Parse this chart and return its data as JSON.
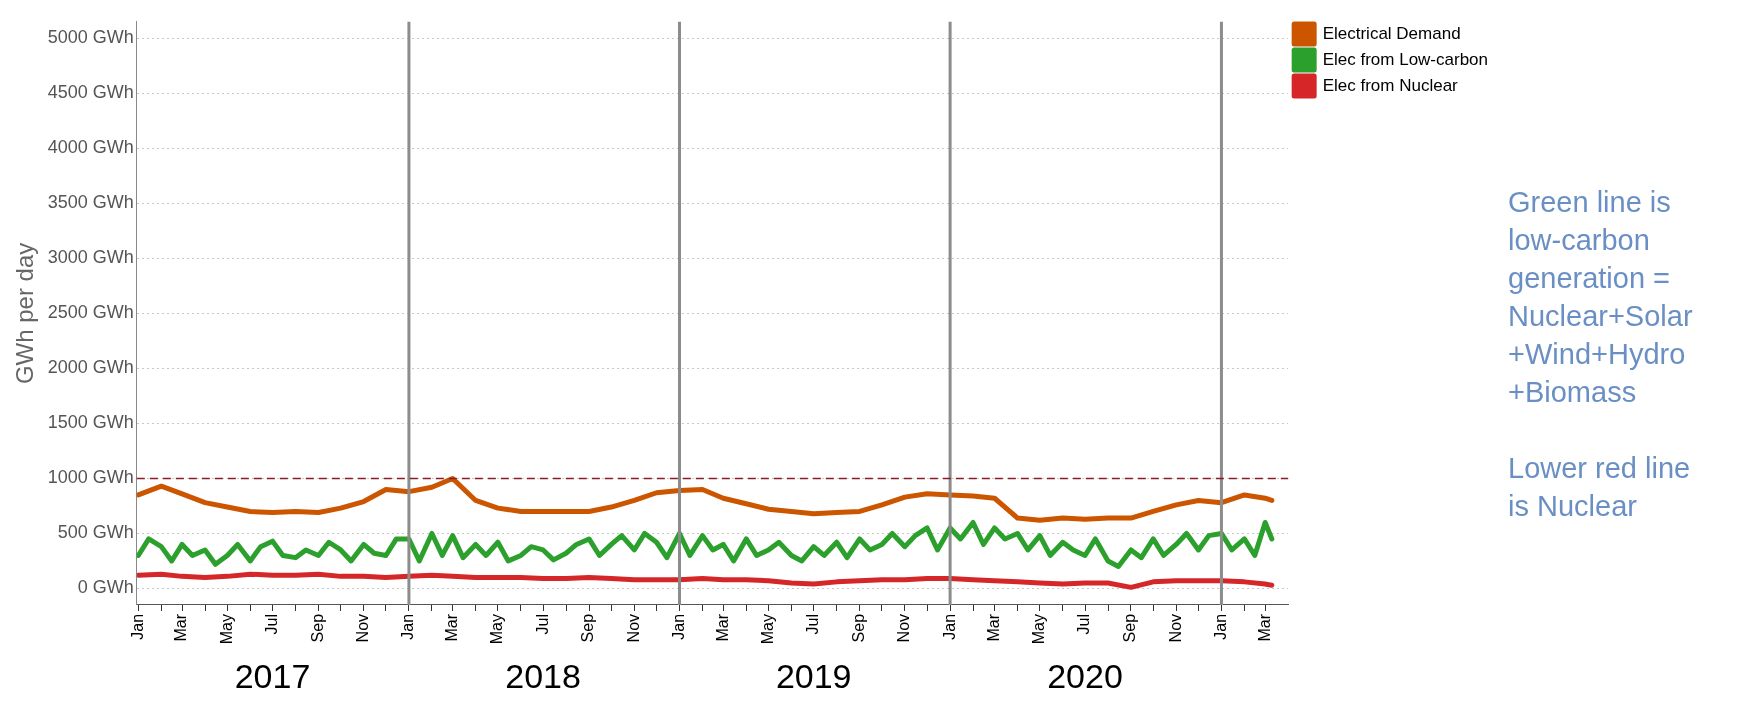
{
  "chart_data": {
    "type": "line",
    "ylabel": "GWh per day",
    "xlim": [
      "2016-12-30",
      "2021-04-01"
    ],
    "xticks": [
      {
        "value": "2017-01",
        "label": "Jan"
      },
      {
        "value": "2017-02",
        "label": null
      },
      {
        "value": "2017-03",
        "label": "Mar"
      },
      {
        "value": "2017-04",
        "label": null
      },
      {
        "value": "2017-05",
        "label": "May"
      },
      {
        "value": "2017-06",
        "label": null
      },
      {
        "value": "2017-07",
        "label": "Jul"
      },
      {
        "value": "2017-08",
        "label": null
      },
      {
        "value": "2017-09",
        "label": "Sep"
      },
      {
        "value": "2017-10",
        "label": null
      },
      {
        "value": "2017-11",
        "label": "Nov"
      },
      {
        "value": "2017-12",
        "label": null
      },
      {
        "value": "2018-01",
        "label": "Jan"
      },
      {
        "value": "2018-02",
        "label": null
      },
      {
        "value": "2018-03",
        "label": "Mar"
      },
      {
        "value": "2018-04",
        "label": null
      },
      {
        "value": "2018-05",
        "label": "May"
      },
      {
        "value": "2018-06",
        "label": null
      },
      {
        "value": "2018-07",
        "label": "Jul"
      },
      {
        "value": "2018-08",
        "label": null
      },
      {
        "value": "2018-09",
        "label": "Sep"
      },
      {
        "value": "2018-10",
        "label": null
      },
      {
        "value": "2018-11",
        "label": "Nov"
      },
      {
        "value": "2018-12",
        "label": null
      },
      {
        "value": "2019-01",
        "label": "Jan"
      },
      {
        "value": "2019-02",
        "label": null
      },
      {
        "value": "2019-03",
        "label": "Mar"
      },
      {
        "value": "2019-04",
        "label": null
      },
      {
        "value": "2019-05",
        "label": "May"
      },
      {
        "value": "2019-06",
        "label": null
      },
      {
        "value": "2019-07",
        "label": "Jul"
      },
      {
        "value": "2019-08",
        "label": null
      },
      {
        "value": "2019-09",
        "label": "Sep"
      },
      {
        "value": "2019-10",
        "label": null
      },
      {
        "value": "2019-11",
        "label": "Nov"
      },
      {
        "value": "2019-12",
        "label": null
      },
      {
        "value": "2020-01",
        "label": "Jan"
      },
      {
        "value": "2020-02",
        "label": null
      },
      {
        "value": "2020-03",
        "label": "Mar"
      },
      {
        "value": "2020-04",
        "label": null
      },
      {
        "value": "2020-05",
        "label": "May"
      },
      {
        "value": "2020-06",
        "label": null
      },
      {
        "value": "2020-07",
        "label": "Jul"
      },
      {
        "value": "2020-08",
        "label": null
      },
      {
        "value": "2020-09",
        "label": "Sep"
      },
      {
        "value": "2020-10",
        "label": null
      },
      {
        "value": "2020-11",
        "label": "Nov"
      },
      {
        "value": "2020-12",
        "label": null
      },
      {
        "value": "2021-01",
        "label": "Jan"
      },
      {
        "value": "2021-02",
        "label": null
      },
      {
        "value": "2021-03",
        "label": "Mar"
      }
    ],
    "x2lim": [
      "2016-12-30",
      "2021-04-01"
    ],
    "x2ticks": [
      {
        "value": "2017-07-01",
        "label": "2017"
      },
      {
        "value": "2018-07-01",
        "label": "2018"
      },
      {
        "value": "2019-07-01",
        "label": "2019"
      },
      {
        "value": "2020-07-01",
        "label": "2020"
      }
    ],
    "ylim": [
      -150,
      5150
    ],
    "yticks": [
      {
        "value": 0,
        "label": "0 GWh"
      },
      {
        "value": 500,
        "label": "500 GWh"
      },
      {
        "value": 1000,
        "label": "1000 GWh"
      },
      {
        "value": 1500,
        "label": "1500 GWh"
      },
      {
        "value": 2000,
        "label": "2000 GWh"
      },
      {
        "value": 2500,
        "label": "2500 GWh"
      },
      {
        "value": 3000,
        "label": "3000 GWh"
      },
      {
        "value": 3500,
        "label": "3500 GWh"
      },
      {
        "value": 4000,
        "label": "4000 GWh"
      },
      {
        "value": 4500,
        "label": "4500 GWh"
      },
      {
        "value": 5000,
        "label": "5000 GWh"
      }
    ],
    "grid": "y",
    "legend": "top right",
    "ref_lines": [
      {
        "axis": "x",
        "value": "2018-01-01",
        "color": "#8c8c8c"
      },
      {
        "axis": "x",
        "value": "2019-01-01",
        "color": "#8c8c8c"
      },
      {
        "axis": "x",
        "value": "2020-01-01",
        "color": "#8c8c8c"
      },
      {
        "axis": "x",
        "value": "2021-01-01",
        "color": "#8c8c8c"
      },
      {
        "axis": "y",
        "value": 1000,
        "color": "#8b1a2b",
        "line_style": "dashed"
      }
    ],
    "annotations": [
      "Green line is low-carbon generation = Nuclear+Solar +Wind+Hydro +Biomass",
      "Lower red line is Nuclear"
    ],
    "series": [
      {
        "name": "Electrical Demand",
        "color": "#cc5500",
        "x": [
          "2017-01",
          "2017-02",
          "2017-03",
          "2017-04",
          "2017-05",
          "2017-06",
          "2017-07",
          "2017-08",
          "2017-09",
          "2017-10",
          "2017-11",
          "2017-12",
          "2018-01",
          "2018-02",
          "2018-03",
          "2018-04",
          "2018-05",
          "2018-06",
          "2018-07",
          "2018-08",
          "2018-09",
          "2018-10",
          "2018-11",
          "2018-12",
          "2019-01",
          "2019-02",
          "2019-03",
          "2019-04",
          "2019-05",
          "2019-06",
          "2019-07",
          "2019-08",
          "2019-09",
          "2019-10",
          "2019-11",
          "2019-12",
          "2020-01",
          "2020-02",
          "2020-03",
          "2020-04",
          "2020-05",
          "2020-06",
          "2020-07",
          "2020-08",
          "2020-09",
          "2020-10",
          "2020-11",
          "2020-12",
          "2021-01",
          "2021-02",
          "2021-03",
          "2021-03-10"
        ],
        "values": [
          850,
          930,
          860,
          780,
          740,
          700,
          690,
          700,
          690,
          730,
          790,
          900,
          880,
          920,
          1000,
          800,
          730,
          700,
          700,
          700,
          700,
          740,
          800,
          870,
          890,
          900,
          820,
          770,
          720,
          700,
          680,
          690,
          700,
          760,
          830,
          860,
          850,
          840,
          820,
          640,
          620,
          640,
          630,
          640,
          640,
          700,
          760,
          800,
          780,
          850,
          820,
          800
        ]
      },
      {
        "name": "Elec from Low-carbon",
        "color": "#2ca02c",
        "x": [
          "2017-01-01",
          "2017-01-15",
          "2017-02-01",
          "2017-02-15",
          "2017-03-01",
          "2017-03-15",
          "2017-04-01",
          "2017-04-15",
          "2017-05-01",
          "2017-05-15",
          "2017-06-01",
          "2017-06-15",
          "2017-07-01",
          "2017-07-15",
          "2017-08-01",
          "2017-08-15",
          "2017-09-01",
          "2017-09-15",
          "2017-10-01",
          "2017-10-15",
          "2017-11-01",
          "2017-11-15",
          "2017-12-01",
          "2017-12-15",
          "2018-01-01",
          "2018-01-15",
          "2018-02-01",
          "2018-02-15",
          "2018-03-01",
          "2018-03-15",
          "2018-04-01",
          "2018-04-15",
          "2018-05-01",
          "2018-05-15",
          "2018-06-01",
          "2018-06-15",
          "2018-07-01",
          "2018-07-15",
          "2018-08-01",
          "2018-08-15",
          "2018-09-01",
          "2018-09-15",
          "2018-10-01",
          "2018-10-15",
          "2018-11-01",
          "2018-11-15",
          "2018-12-01",
          "2018-12-15",
          "2019-01-01",
          "2019-01-15",
          "2019-02-01",
          "2019-02-15",
          "2019-03-01",
          "2019-03-15",
          "2019-04-01",
          "2019-04-15",
          "2019-05-01",
          "2019-05-15",
          "2019-06-01",
          "2019-06-15",
          "2019-07-01",
          "2019-07-15",
          "2019-08-01",
          "2019-08-15",
          "2019-09-01",
          "2019-09-15",
          "2019-10-01",
          "2019-10-15",
          "2019-11-01",
          "2019-11-15",
          "2019-12-01",
          "2019-12-15",
          "2020-01-01",
          "2020-01-15",
          "2020-02-01",
          "2020-02-15",
          "2020-03-01",
          "2020-03-15",
          "2020-04-01",
          "2020-04-15",
          "2020-05-01",
          "2020-05-15",
          "2020-06-01",
          "2020-06-15",
          "2020-07-01",
          "2020-07-15",
          "2020-08-01",
          "2020-08-15",
          "2020-09-01",
          "2020-09-15",
          "2020-10-01",
          "2020-10-15",
          "2020-11-01",
          "2020-11-15",
          "2020-12-01",
          "2020-12-15",
          "2021-01-01",
          "2021-01-15",
          "2021-02-01",
          "2021-02-15",
          "2021-03-01",
          "2021-03-10"
        ],
        "values": [
          300,
          450,
          380,
          250,
          400,
          300,
          350,
          220,
          300,
          400,
          250,
          380,
          430,
          300,
          280,
          350,
          300,
          420,
          350,
          250,
          400,
          320,
          300,
          450,
          450,
          250,
          500,
          300,
          480,
          280,
          400,
          300,
          420,
          250,
          300,
          380,
          350,
          260,
          320,
          400,
          450,
          300,
          400,
          480,
          350,
          500,
          420,
          280,
          500,
          300,
          480,
          350,
          400,
          250,
          450,
          300,
          350,
          420,
          300,
          250,
          380,
          300,
          420,
          280,
          450,
          350,
          400,
          500,
          380,
          480,
          550,
          350,
          550,
          450,
          600,
          400,
          550,
          450,
          500,
          350,
          480,
          300,
          420,
          350,
          300,
          450,
          250,
          200,
          350,
          280,
          450,
          300,
          400,
          500,
          350,
          480,
          500,
          350,
          450,
          300,
          600,
          450
        ]
      },
      {
        "name": "Elec from Nuclear",
        "color": "#d62728",
        "x": [
          "2017-01",
          "2017-02",
          "2017-03",
          "2017-04",
          "2017-05",
          "2017-06",
          "2017-07",
          "2017-08",
          "2017-09",
          "2017-10",
          "2017-11",
          "2017-12",
          "2018-01",
          "2018-02",
          "2018-03",
          "2018-04",
          "2018-05",
          "2018-06",
          "2018-07",
          "2018-08",
          "2018-09",
          "2018-10",
          "2018-11",
          "2018-12",
          "2019-01",
          "2019-02",
          "2019-03",
          "2019-04",
          "2019-05",
          "2019-06",
          "2019-07",
          "2019-08",
          "2019-09",
          "2019-10",
          "2019-11",
          "2019-12",
          "2020-01",
          "2020-02",
          "2020-03",
          "2020-04",
          "2020-05",
          "2020-06",
          "2020-07",
          "2020-08",
          "2020-09",
          "2020-10",
          "2020-11",
          "2020-12",
          "2021-01",
          "2021-02",
          "2021-03",
          "2021-03-10"
        ],
        "values": [
          120,
          130,
          110,
          100,
          110,
          130,
          120,
          120,
          130,
          110,
          110,
          100,
          110,
          120,
          110,
          100,
          100,
          100,
          90,
          90,
          100,
          90,
          80,
          80,
          80,
          90,
          80,
          80,
          70,
          50,
          40,
          60,
          70,
          80,
          80,
          90,
          90,
          80,
          70,
          60,
          50,
          40,
          50,
          50,
          10,
          60,
          70,
          70,
          70,
          60,
          40,
          30
        ]
      }
    ]
  }
}
